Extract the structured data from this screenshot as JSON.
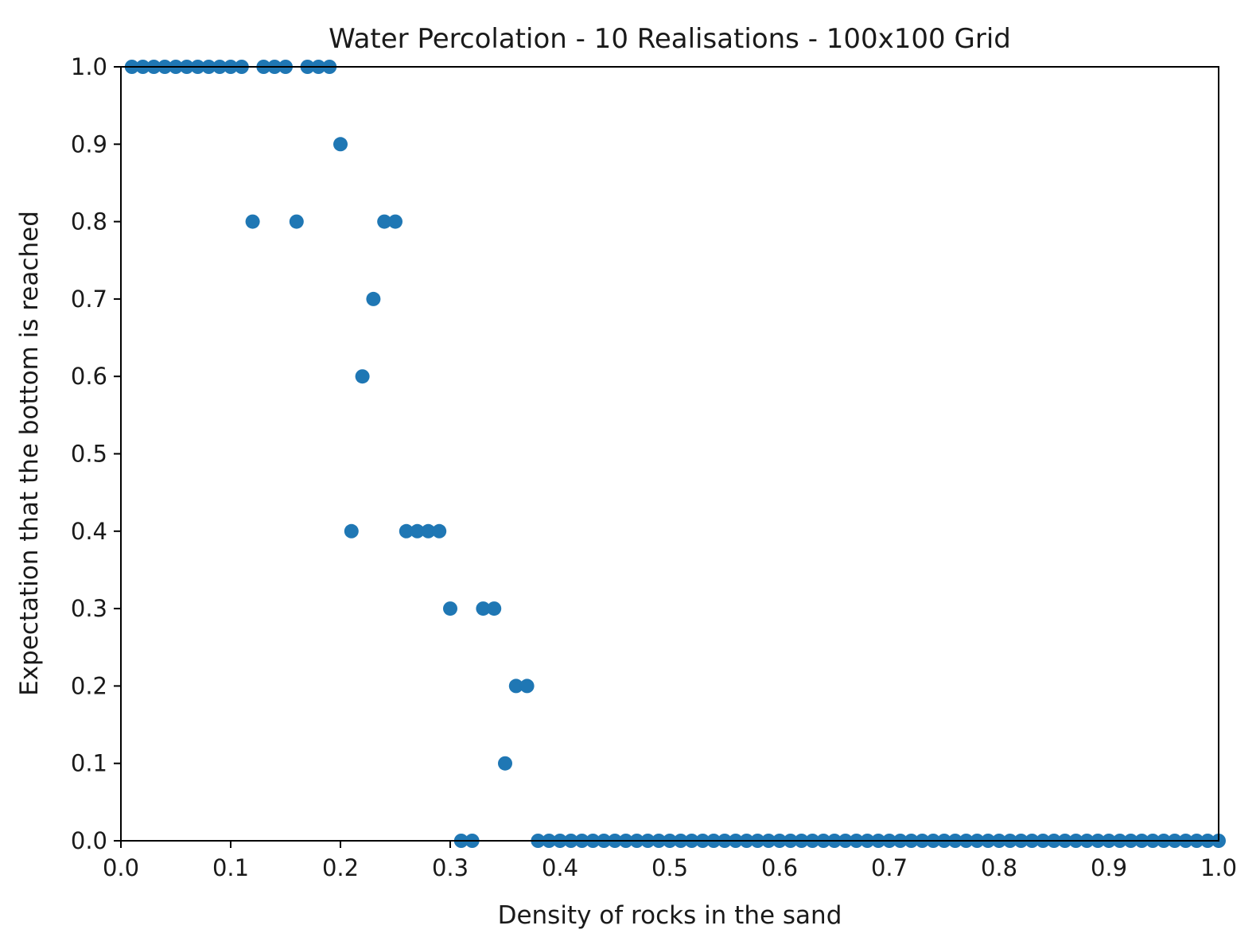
{
  "chart_data": {
    "type": "scatter",
    "title": "Water Percolation - 10 Realisations - 100x100 Grid",
    "xlabel": "Density of rocks in the sand",
    "ylabel": "Expectation that the bottom is reached",
    "xlim": [
      0.0,
      1.0
    ],
    "ylim": [
      0.0,
      1.0
    ],
    "xticks": [
      "0.0",
      "0.1",
      "0.2",
      "0.3",
      "0.4",
      "0.5",
      "0.6",
      "0.7",
      "0.8",
      "0.9",
      "1.0"
    ],
    "yticks": [
      "0.0",
      "0.1",
      "0.2",
      "0.3",
      "0.4",
      "0.5",
      "0.6",
      "0.7",
      "0.8",
      "0.9",
      "1.0"
    ],
    "grid": false,
    "marker_color": "#1f77b4",
    "x": [
      0.01,
      0.02,
      0.03,
      0.04,
      0.05,
      0.06,
      0.07,
      0.08,
      0.09,
      0.1,
      0.11,
      0.12,
      0.13,
      0.14,
      0.15,
      0.16,
      0.17,
      0.18,
      0.19,
      0.2,
      0.21,
      0.22,
      0.23,
      0.24,
      0.25,
      0.26,
      0.27,
      0.28,
      0.29,
      0.3,
      0.31,
      0.32,
      0.33,
      0.34,
      0.35,
      0.36,
      0.37,
      0.38,
      0.39,
      0.4,
      0.41,
      0.42,
      0.43,
      0.44,
      0.45,
      0.46,
      0.47,
      0.48,
      0.49,
      0.5,
      0.51,
      0.52,
      0.53,
      0.54,
      0.55,
      0.56,
      0.57,
      0.58,
      0.59,
      0.6,
      0.61,
      0.62,
      0.63,
      0.64,
      0.65,
      0.66,
      0.67,
      0.68,
      0.69,
      0.7,
      0.71,
      0.72,
      0.73,
      0.74,
      0.75,
      0.76,
      0.77,
      0.78,
      0.79,
      0.8,
      0.81,
      0.82,
      0.83,
      0.84,
      0.85,
      0.86,
      0.87,
      0.88,
      0.89,
      0.9,
      0.91,
      0.92,
      0.93,
      0.94,
      0.95,
      0.96,
      0.97,
      0.98,
      0.99,
      1.0
    ],
    "y": [
      1.0,
      1.0,
      1.0,
      1.0,
      1.0,
      1.0,
      1.0,
      1.0,
      1.0,
      1.0,
      1.0,
      0.8,
      1.0,
      1.0,
      1.0,
      0.8,
      1.0,
      1.0,
      1.0,
      0.9,
      0.4,
      0.6,
      0.7,
      0.8,
      0.8,
      0.4,
      0.4,
      0.4,
      0.4,
      0.3,
      0.0,
      0.0,
      0.3,
      0.3,
      0.1,
      0.2,
      0.2,
      0.0,
      0.0,
      0.0,
      0.0,
      0.0,
      0.0,
      0.0,
      0.0,
      0.0,
      0.0,
      0.0,
      0.0,
      0.0,
      0.0,
      0.0,
      0.0,
      0.0,
      0.0,
      0.0,
      0.0,
      0.0,
      0.0,
      0.0,
      0.0,
      0.0,
      0.0,
      0.0,
      0.0,
      0.0,
      0.0,
      0.0,
      0.0,
      0.0,
      0.0,
      0.0,
      0.0,
      0.0,
      0.0,
      0.0,
      0.0,
      0.0,
      0.0,
      0.0,
      0.0,
      0.0,
      0.0,
      0.0,
      0.0,
      0.0,
      0.0,
      0.0,
      0.0,
      0.0,
      0.0,
      0.0,
      0.0,
      0.0,
      0.0,
      0.0,
      0.0,
      0.0,
      0.0,
      0.0
    ]
  }
}
